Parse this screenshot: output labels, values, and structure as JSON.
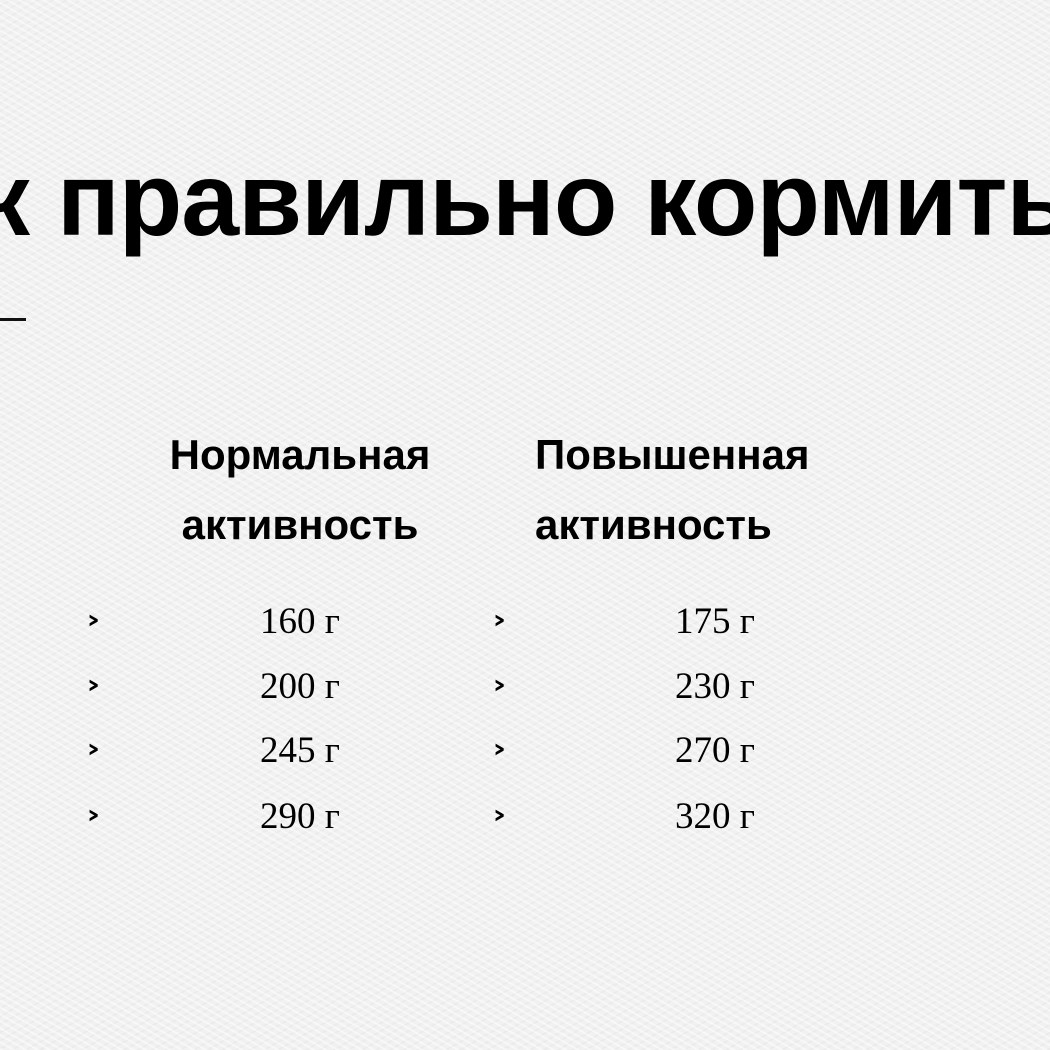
{
  "title": "к правильно кормить",
  "columns": [
    {
      "heading_line1": "Нормальная",
      "heading_line2": "активность",
      "values": [
        "160 г",
        "200 г",
        "245 г",
        "290 г"
      ]
    },
    {
      "heading_line1": "Повышенная",
      "heading_line2": "активность",
      "values": [
        "175 г",
        "230 г",
        "270 г",
        "320 г"
      ]
    }
  ],
  "bullet_icon": "chevron-right-icon"
}
